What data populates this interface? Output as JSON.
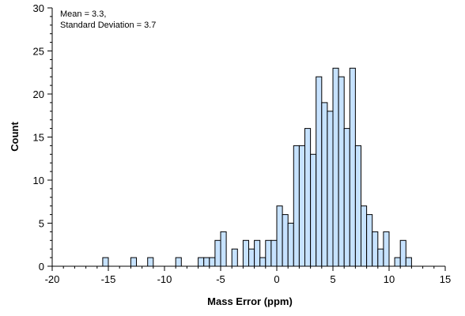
{
  "chart_data": {
    "type": "bar",
    "title": "",
    "xlabel": "Mass Error (ppm)",
    "ylabel": "Count",
    "annotations": [
      "Mean = 3.3,",
      "Standard Deviation = 3.7"
    ],
    "xlim": [
      -20,
      15
    ],
    "ylim": [
      0,
      30
    ],
    "x_ticks": [
      -20,
      -15,
      -10,
      -5,
      0,
      5,
      10,
      15
    ],
    "y_ticks": [
      0,
      5,
      10,
      15,
      20,
      25,
      30
    ],
    "bin_width": 0.5,
    "grid": false,
    "bar_color": "#c6e2ff",
    "bins": [
      {
        "x": -15.5,
        "count": 1
      },
      {
        "x": -13.0,
        "count": 1
      },
      {
        "x": -11.5,
        "count": 1
      },
      {
        "x": -9.0,
        "count": 1
      },
      {
        "x": -7.0,
        "count": 1
      },
      {
        "x": -6.5,
        "count": 1
      },
      {
        "x": -6.0,
        "count": 1
      },
      {
        "x": -5.5,
        "count": 3
      },
      {
        "x": -5.0,
        "count": 4
      },
      {
        "x": -4.0,
        "count": 2
      },
      {
        "x": -3.0,
        "count": 3
      },
      {
        "x": -2.5,
        "count": 2
      },
      {
        "x": -2.0,
        "count": 3
      },
      {
        "x": -1.5,
        "count": 1
      },
      {
        "x": -1.0,
        "count": 3
      },
      {
        "x": -0.5,
        "count": 3
      },
      {
        "x": 0.0,
        "count": 7
      },
      {
        "x": 0.5,
        "count": 6
      },
      {
        "x": 1.0,
        "count": 5
      },
      {
        "x": 1.5,
        "count": 14
      },
      {
        "x": 2.0,
        "count": 14
      },
      {
        "x": 2.5,
        "count": 16
      },
      {
        "x": 3.0,
        "count": 13
      },
      {
        "x": 3.5,
        "count": 22
      },
      {
        "x": 4.0,
        "count": 19
      },
      {
        "x": 4.5,
        "count": 18
      },
      {
        "x": 5.0,
        "count": 23
      },
      {
        "x": 5.5,
        "count": 22
      },
      {
        "x": 6.0,
        "count": 16
      },
      {
        "x": 6.5,
        "count": 23
      },
      {
        "x": 7.0,
        "count": 14
      },
      {
        "x": 7.5,
        "count": 7
      },
      {
        "x": 8.0,
        "count": 6
      },
      {
        "x": 8.5,
        "count": 4
      },
      {
        "x": 9.0,
        "count": 2
      },
      {
        "x": 9.5,
        "count": 4
      },
      {
        "x": 10.5,
        "count": 1
      },
      {
        "x": 11.0,
        "count": 3
      },
      {
        "x": 11.5,
        "count": 1
      }
    ]
  }
}
